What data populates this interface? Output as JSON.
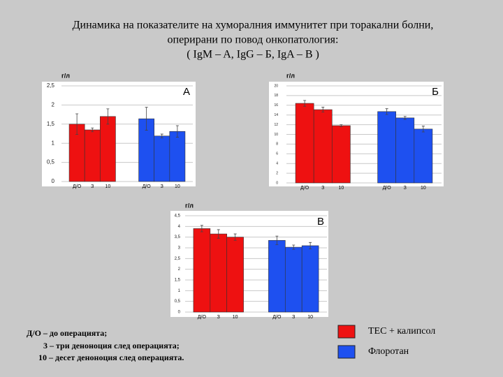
{
  "title": [
    "Динамика на показателите на хуморалния иммунитет при торакални болни,",
    "оперирани по повод онкопатология:",
    "( IgM – A, IgG – Б, IgA – B )"
  ],
  "legend": [
    {
      "name": "ТЕС + калипсол",
      "color": "#ee1111"
    },
    {
      "name": "Флоротан",
      "color": "#1e50f0"
    }
  ],
  "notes": [
    "Д/О – до операцията;",
    "3 – три деноноция след операцията;",
    "10 – десет деноноция след операцията."
  ],
  "chart_data": [
    {
      "type": "bar",
      "ylabel": "г/л",
      "label": "А",
      "categories": [
        "Д/О",
        "З",
        "10"
      ],
      "series": [
        {
          "values": [
            1.5,
            1.35,
            1.7
          ],
          "errors": [
            0.27,
            0.05,
            0.2
          ]
        },
        {
          "values": [
            1.64,
            1.19,
            1.31
          ],
          "errors": [
            0.3,
            0.05,
            0.15
          ]
        }
      ],
      "ylim": [
        0,
        2.5
      ],
      "yticks": [
        0,
        {
          "value": 0.5,
          "label": "0,5"
        },
        1,
        {
          "value": 1.5,
          "label": "1,5"
        },
        2,
        {
          "value": 2.5,
          "label": "2,5"
        }
      ],
      "grid": true
    },
    {
      "type": "bar",
      "ylabel": "г/л",
      "label": "Б",
      "categories": [
        "Д/О",
        "З",
        "10"
      ],
      "series": [
        {
          "values": [
            16.4,
            15.1,
            11.8
          ],
          "errors": [
            0.6,
            0.5,
            0.2
          ]
        },
        {
          "values": [
            14.7,
            13.4,
            11.1
          ],
          "errors": [
            0.6,
            0.3,
            0.6
          ]
        }
      ],
      "ylim": [
        0,
        20
      ],
      "yticks": [
        0,
        2,
        4,
        6,
        8,
        10,
        12,
        14,
        16,
        18,
        20
      ],
      "grid": true
    },
    {
      "type": "bar",
      "ylabel": "г/л",
      "label": "В",
      "categories": [
        "Д/О",
        "З",
        "10"
      ],
      "series": [
        {
          "values": [
            3.9,
            3.65,
            3.5
          ],
          "errors": [
            0.15,
            0.2,
            0.15
          ]
        },
        {
          "values": [
            3.35,
            3.03,
            3.1
          ],
          "errors": [
            0.2,
            0.1,
            0.15
          ]
        }
      ],
      "ylim": [
        0,
        4.5
      ],
      "yticks": [
        0,
        {
          "value": 0.5,
          "label": "0,5"
        },
        1,
        {
          "value": 1.5,
          "label": "1,5"
        },
        2,
        {
          "value": 2.5,
          "label": "2,5"
        },
        3,
        {
          "value": 3.5,
          "label": "3,5"
        },
        4,
        {
          "value": 4.5,
          "label": "4,5"
        }
      ],
      "grid": true
    }
  ]
}
